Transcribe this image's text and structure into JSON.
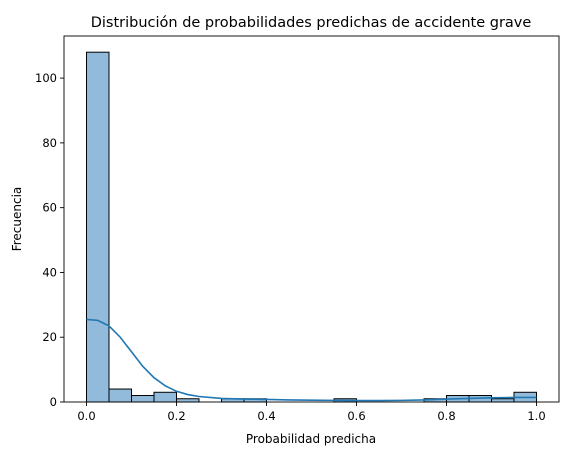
{
  "chart_data": {
    "type": "bar",
    "title": "Distribución de probabilidades predichas de accidente grave",
    "xlabel": "Probabilidad predicha",
    "ylabel": "Frecuencia",
    "xlim": [
      -0.05,
      1.05
    ],
    "ylim": [
      0,
      113
    ],
    "xticks": [
      0.0,
      0.2,
      0.4,
      0.6,
      0.8,
      1.0
    ],
    "xtick_labels": [
      "0.0",
      "0.2",
      "0.4",
      "0.6",
      "0.8",
      "1.0"
    ],
    "yticks": [
      0,
      20,
      40,
      60,
      80,
      100
    ],
    "ytick_labels": [
      "0",
      "20",
      "40",
      "60",
      "80",
      "100"
    ],
    "grid": false,
    "bins": [
      {
        "x0": 0.0,
        "x1": 0.05,
        "count": 108
      },
      {
        "x0": 0.05,
        "x1": 0.1,
        "count": 4
      },
      {
        "x0": 0.1,
        "x1": 0.15,
        "count": 2
      },
      {
        "x0": 0.15,
        "x1": 0.2,
        "count": 3
      },
      {
        "x0": 0.2,
        "x1": 0.25,
        "count": 1
      },
      {
        "x0": 0.25,
        "x1": 0.3,
        "count": 0
      },
      {
        "x0": 0.3,
        "x1": 0.35,
        "count": 1
      },
      {
        "x0": 0.35,
        "x1": 0.4,
        "count": 1
      },
      {
        "x0": 0.4,
        "x1": 0.45,
        "count": 0
      },
      {
        "x0": 0.45,
        "x1": 0.5,
        "count": 0
      },
      {
        "x0": 0.5,
        "x1": 0.55,
        "count": 0
      },
      {
        "x0": 0.55,
        "x1": 0.6,
        "count": 1
      },
      {
        "x0": 0.6,
        "x1": 0.65,
        "count": 0
      },
      {
        "x0": 0.65,
        "x1": 0.7,
        "count": 0
      },
      {
        "x0": 0.7,
        "x1": 0.75,
        "count": 0
      },
      {
        "x0": 0.75,
        "x1": 0.8,
        "count": 1
      },
      {
        "x0": 0.8,
        "x1": 0.85,
        "count": 2
      },
      {
        "x0": 0.85,
        "x1": 0.9,
        "count": 2
      },
      {
        "x0": 0.9,
        "x1": 0.95,
        "count": 1
      },
      {
        "x0": 0.95,
        "x1": 1.0,
        "count": 3
      }
    ],
    "kde": {
      "x": [
        0.0,
        0.025,
        0.05,
        0.075,
        0.1,
        0.125,
        0.15,
        0.175,
        0.2,
        0.225,
        0.25,
        0.3,
        0.35,
        0.4,
        0.45,
        0.5,
        0.55,
        0.6,
        0.65,
        0.7,
        0.75,
        0.8,
        0.85,
        0.9,
        0.95,
        1.0
      ],
      "y": [
        25.5,
        25.2,
        23.5,
        20.0,
        15.5,
        11.0,
        7.5,
        5.0,
        3.3,
        2.3,
        1.7,
        1.1,
        0.9,
        0.8,
        0.65,
        0.55,
        0.5,
        0.45,
        0.45,
        0.5,
        0.65,
        0.9,
        1.1,
        1.3,
        1.4,
        1.4
      ]
    },
    "colors": {
      "bar_fill": "#92bbdb",
      "bar_edge": "#000000",
      "kde_line": "#1f77b4"
    }
  }
}
